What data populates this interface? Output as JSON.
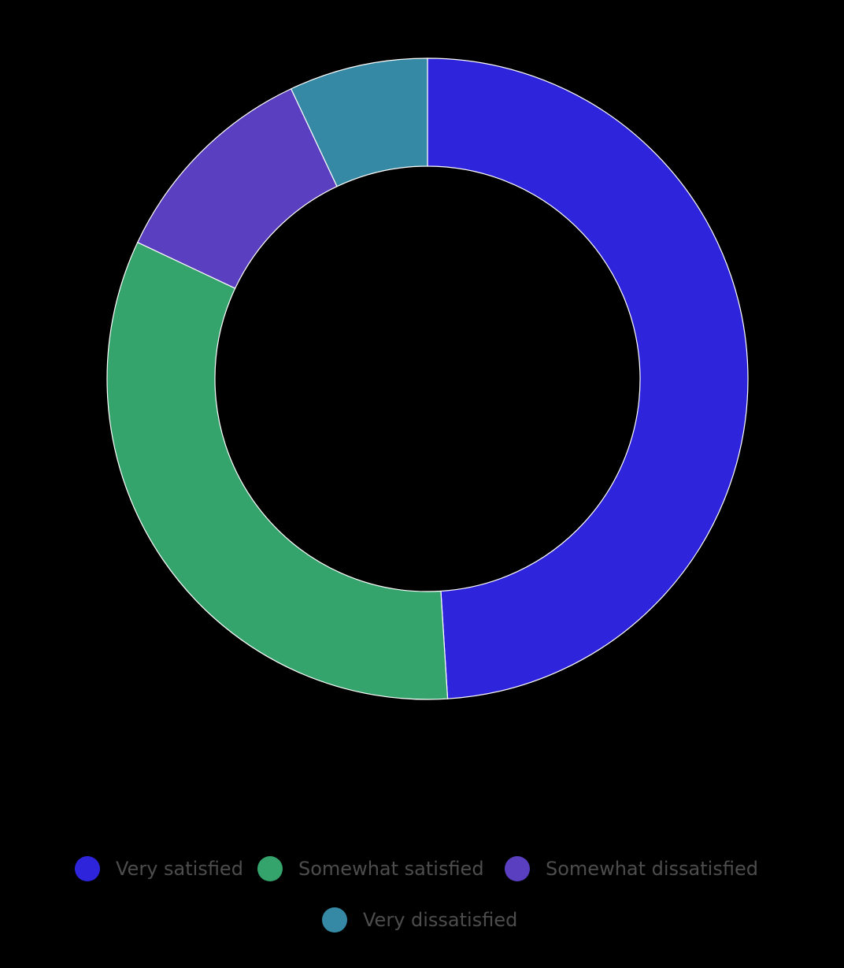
{
  "chart_data": {
    "type": "pie",
    "categories": [
      "Very satisfied",
      "Somewhat satisfied",
      "Somewhat dissatisfied",
      "Very dissatisfied"
    ],
    "values": [
      49,
      33,
      11,
      7
    ],
    "colors": [
      "#2e24dc",
      "#35a46c",
      "#5a3fc0",
      "#3589a4"
    ],
    "donut": true,
    "legend": "bottom"
  }
}
